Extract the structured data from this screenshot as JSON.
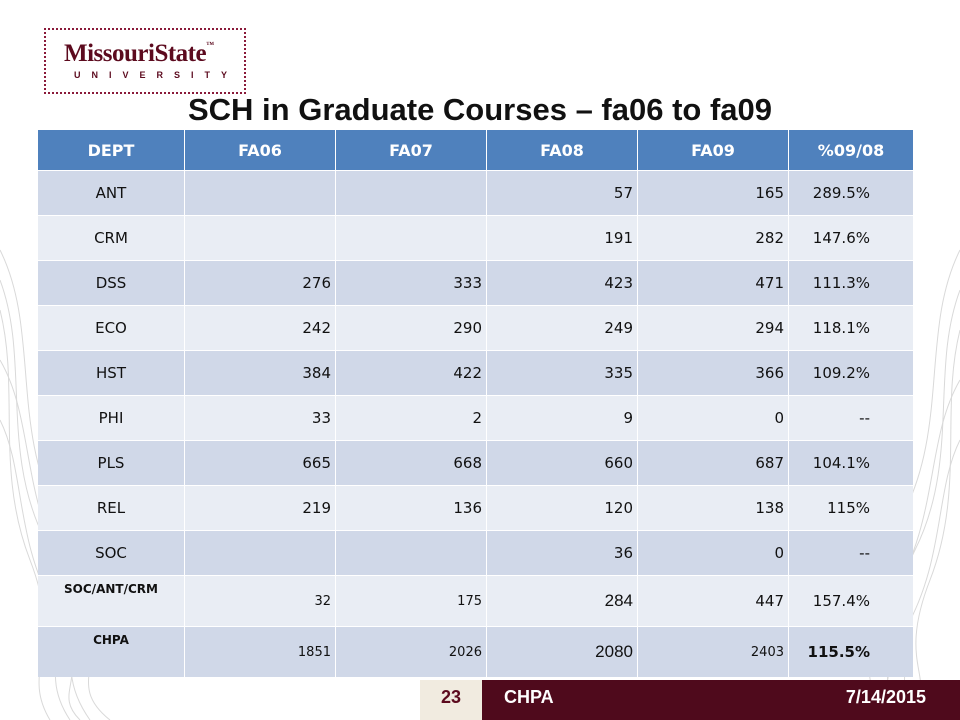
{
  "logo": {
    "main": "MissouriState",
    "tm": "™",
    "sub": "UNIVERSITY"
  },
  "title": "SCH in Graduate Courses – fa06 to fa09",
  "table": {
    "headers": [
      "DEPT",
      "FA06",
      "FA07",
      "FA08",
      "FA09",
      "%09/08"
    ],
    "rows": [
      [
        "ANT",
        "",
        "",
        "57",
        "165",
        "289.5%"
      ],
      [
        "CRM",
        "",
        "",
        "191",
        "282",
        "147.6%"
      ],
      [
        "DSS",
        "276",
        "333",
        "423",
        "471",
        "111.3%"
      ],
      [
        "ECO",
        "242",
        "290",
        "249",
        "294",
        "118.1%"
      ],
      [
        "HST",
        "384",
        "422",
        "335",
        "366",
        "109.2%"
      ],
      [
        "PHI",
        "33",
        "2",
        "9",
        "0",
        "--"
      ],
      [
        "PLS",
        "665",
        "668",
        "660",
        "687",
        "104.1%"
      ],
      [
        "REL",
        "219",
        "136",
        "120",
        "138",
        "115%"
      ],
      [
        "SOC",
        "",
        "",
        "36",
        "0",
        "--"
      ],
      [
        "SOC/ANT/CRM",
        "32",
        "175",
        "284",
        "447",
        "157.4%"
      ],
      [
        "CHPA",
        "1851",
        "2026",
        "2080",
        "2403",
        "115.5%"
      ]
    ]
  },
  "footer": {
    "slide_number": "23",
    "label": "CHPA",
    "date": "7/14/2015"
  },
  "colors": {
    "header_blue": "#4f81bd",
    "row_dark": "#d0d8e8",
    "row_light": "#e9edf4",
    "maroon": "#4f0a1c"
  }
}
